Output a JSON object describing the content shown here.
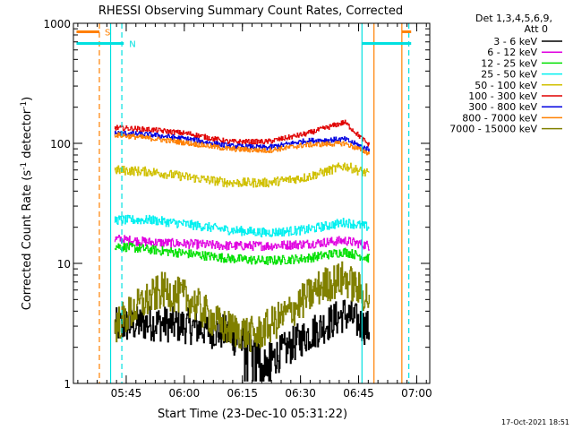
{
  "chart_data": {
    "type": "line",
    "title": "RHESSI Observing Summary Count Rates, Corrected",
    "xlabel": "Start Time (23-Dec-10 05:31:22)",
    "ylabel_main": "Corrected Count Rate (s",
    "ylabel_sup1": "-1",
    "ylabel_mid": " detector",
    "ylabel_sup2": "-1",
    "ylabel_end": ")",
    "y_scale": "log",
    "ylim": [
      1,
      1000
    ],
    "xlim_minutes": [
      0,
      92
    ],
    "y_ticks": [
      {
        "value": 1,
        "label": "1"
      },
      {
        "value": 10,
        "label": "10"
      },
      {
        "value": 100,
        "label": "100"
      },
      {
        "value": 1000,
        "label": "1000"
      }
    ],
    "x_ticks": [
      {
        "minutes": 13.63,
        "label": "05:45"
      },
      {
        "minutes": 28.63,
        "label": "06:00"
      },
      {
        "minutes": 43.63,
        "label": "06:15"
      },
      {
        "minutes": 58.63,
        "label": "06:30"
      },
      {
        "minutes": 73.63,
        "label": "06:45"
      },
      {
        "minutes": 88.63,
        "label": "07:00"
      }
    ],
    "legend": {
      "header_line1": "Det 1,3,4,5,6,9,",
      "header_line2": "Att 0",
      "position": "right"
    },
    "series": [
      {
        "name": "3 - 6 keV",
        "color": "#000000",
        "start": 10.6,
        "end": 76.5,
        "knots_minutes": [
          10.6,
          20,
          30,
          40,
          50,
          60,
          70,
          76.5
        ],
        "knots_values": [
          3.0,
          3.2,
          3.0,
          2.6,
          1.5,
          2.5,
          3.8,
          2.8
        ]
      },
      {
        "name": "6 - 12 keV",
        "color": "#e000e0",
        "start": 10.6,
        "end": 76.5,
        "knots_minutes": [
          10.6,
          20,
          30,
          40,
          50,
          60,
          70,
          76.5
        ],
        "knots_values": [
          16,
          15,
          14.5,
          14,
          14,
          14.5,
          15.5,
          14
        ]
      },
      {
        "name": "12 - 25 keV",
        "color": "#00e000",
        "start": 10.6,
        "end": 76.5,
        "knots_minutes": [
          10.6,
          20,
          30,
          40,
          50,
          60,
          70,
          76.5
        ],
        "knots_values": [
          14,
          13,
          12,
          11,
          10.5,
          11,
          12.5,
          11
        ]
      },
      {
        "name": "25 - 50 keV",
        "color": "#00f0f0",
        "start": 10.6,
        "end": 76.5,
        "knots_minutes": [
          10.6,
          20,
          30,
          40,
          50,
          60,
          70,
          76.5
        ],
        "knots_values": [
          23,
          23,
          21,
          19,
          18,
          19,
          22,
          20
        ]
      },
      {
        "name": "50 - 100 keV",
        "color": "#d0c000",
        "start": 10.6,
        "end": 76.5,
        "knots_minutes": [
          10.6,
          20,
          30,
          40,
          50,
          60,
          70,
          76.5
        ],
        "knots_values": [
          60,
          58,
          52,
          47,
          47,
          52,
          65,
          55
        ]
      },
      {
        "name": "100 - 300 keV",
        "color": "#e00000",
        "start": 10.6,
        "end": 76.5,
        "knots_minutes": [
          10.6,
          20,
          30,
          40,
          50,
          60,
          70,
          76.5
        ],
        "knots_values": [
          135,
          130,
          120,
          103,
          103,
          120,
          150,
          95
        ]
      },
      {
        "name": "300 - 800 keV",
        "color": "#0000e0",
        "start": 10.6,
        "end": 76.5,
        "knots_minutes": [
          10.6,
          20,
          30,
          40,
          50,
          60,
          70,
          76.5
        ],
        "knots_values": [
          122,
          118,
          108,
          95,
          92,
          105,
          108,
          88
        ]
      },
      {
        "name": "800 - 7000 keV",
        "color": "#ff8000",
        "start": 10.6,
        "end": 76.5,
        "knots_minutes": [
          10.6,
          20,
          30,
          40,
          50,
          60,
          70,
          76.5
        ],
        "knots_values": [
          118,
          110,
          100,
          90,
          87,
          97,
          100,
          82
        ]
      },
      {
        "name": "7000 - 15000 keV",
        "color": "#808000",
        "start": 10.6,
        "end": 76.5,
        "knots_minutes": [
          10.6,
          17,
          23,
          30,
          38,
          47,
          56,
          64,
          70,
          76.5
        ],
        "knots_values": [
          3.0,
          4.5,
          6.0,
          5.0,
          3.0,
          2.5,
          4.0,
          6.5,
          7.5,
          5.0
        ]
      }
    ],
    "vertical_markers": [
      {
        "minutes": 6.7,
        "color": "#ff8000",
        "style": "dashed"
      },
      {
        "minutes": 12.5,
        "color": "#00e0e0",
        "style": "dashed"
      },
      {
        "minutes": 9.6,
        "color": "#00e0e0",
        "style": "solid"
      },
      {
        "minutes": 74.5,
        "color": "#00e0e0",
        "style": "solid"
      },
      {
        "minutes": 77.6,
        "color": "#ff8000",
        "style": "solid"
      },
      {
        "minutes": 84.8,
        "color": "#ff8000",
        "style": "solid"
      },
      {
        "minutes": 86.6,
        "color": "#00e0e0",
        "style": "dashed"
      }
    ],
    "flags": [
      {
        "label": "S",
        "color": "#ff8000",
        "segments": [
          [
            0.8,
            6.7
          ],
          [
            84.8,
            87.2
          ]
        ],
        "value": 850
      },
      {
        "label": "N",
        "color": "#00e0e0",
        "segments": [
          [
            0.8,
            13.0
          ],
          [
            74.5,
            87.2
          ]
        ],
        "value": 680
      }
    ],
    "timestamp": "17-Oct-2021 18:51"
  }
}
